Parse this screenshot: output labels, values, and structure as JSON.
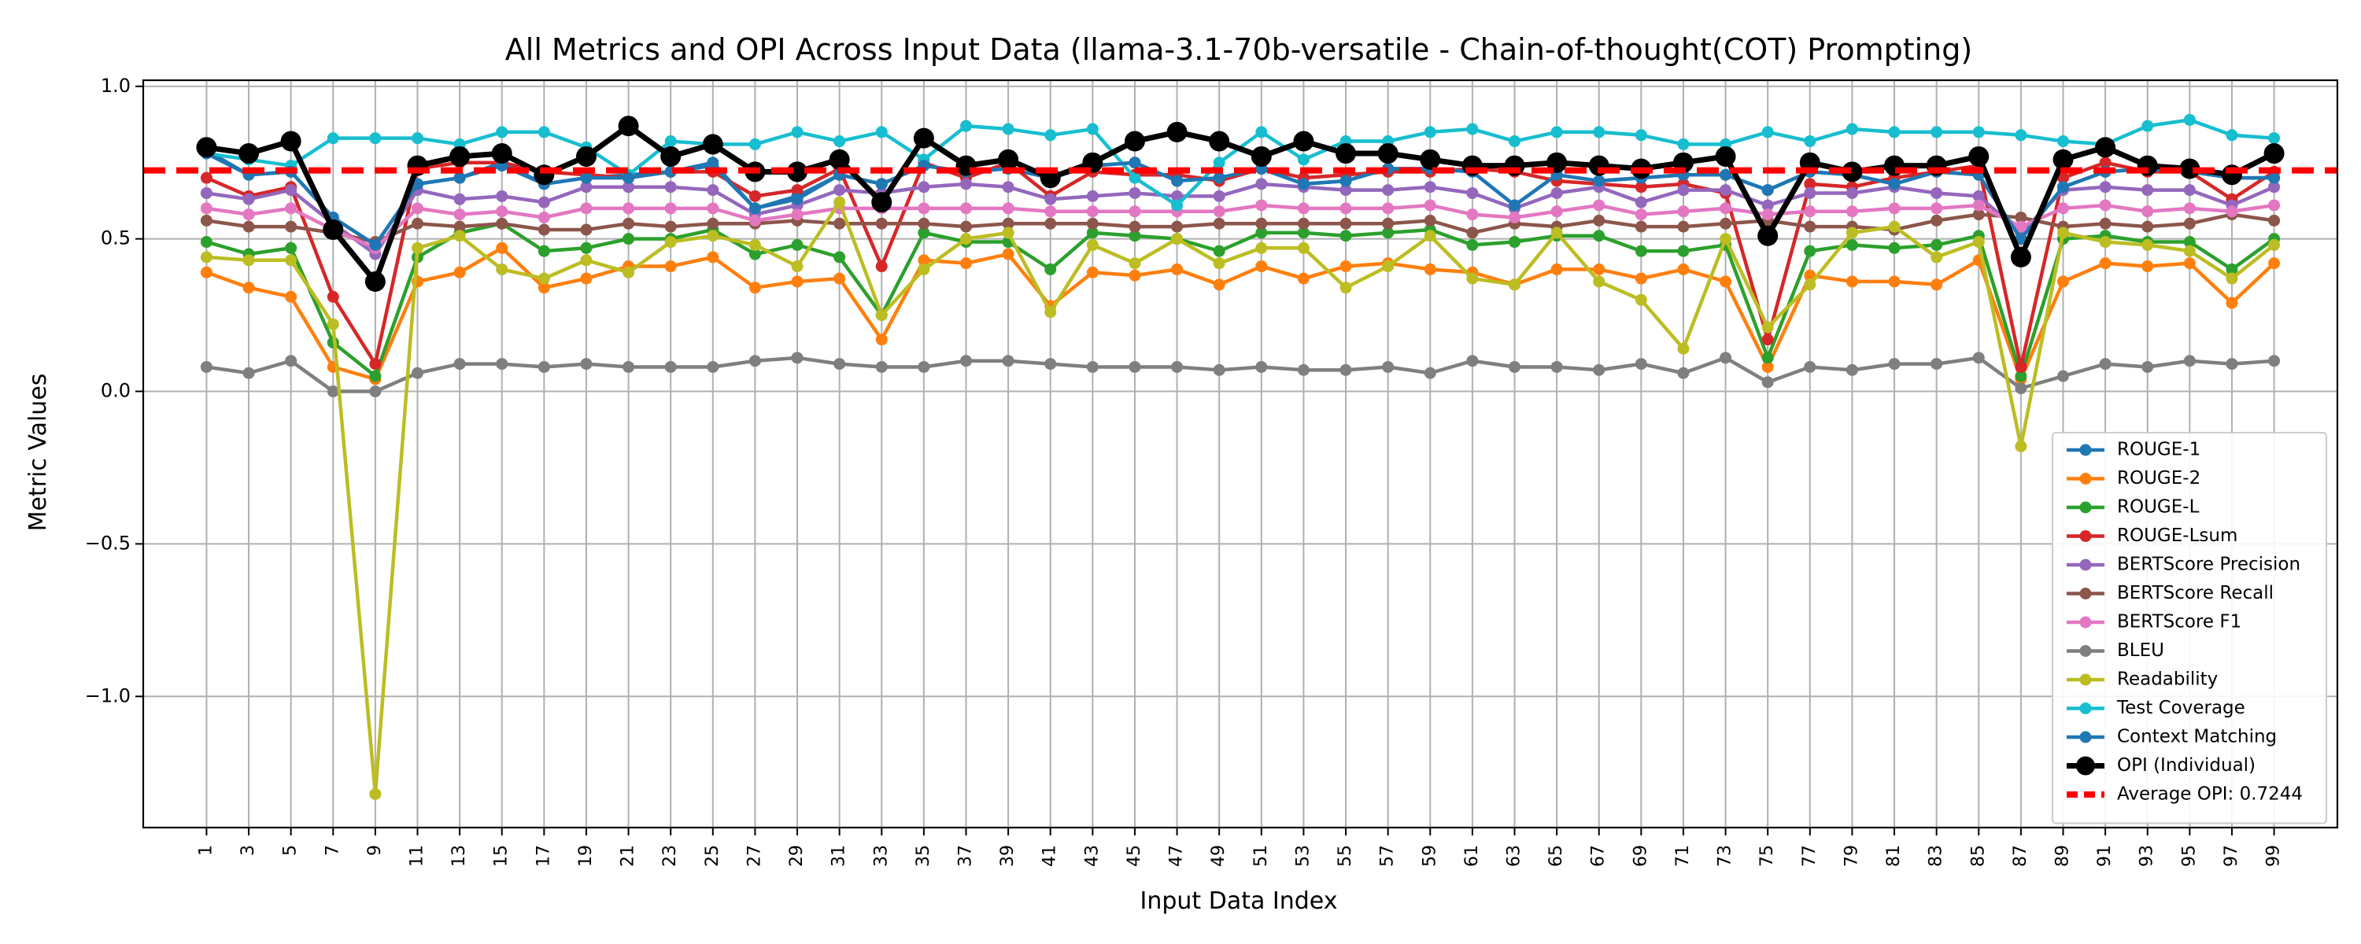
{
  "chart_data": {
    "type": "line",
    "title": "All Metrics and OPI Across Input Data (llama-3.1-70b-versatile - Chain-of-thought(COT) Prompting)",
    "xlabel": "Input Data Index",
    "ylabel": "Metric Values",
    "xlim": [
      -2,
      102
    ],
    "ylim": [
      -1.43,
      1.02
    ],
    "yticks": [
      1.0,
      0.5,
      0.0,
      -0.5,
      -1.0
    ],
    "ytick_labels": [
      "1.0",
      "0.5",
      "0.0",
      "−0.5",
      "−1.0"
    ],
    "x": [
      1,
      3,
      5,
      7,
      9,
      11,
      13,
      15,
      17,
      19,
      21,
      23,
      25,
      27,
      29,
      31,
      33,
      35,
      37,
      39,
      41,
      43,
      45,
      47,
      49,
      51,
      53,
      55,
      57,
      59,
      61,
      63,
      65,
      67,
      69,
      71,
      73,
      75,
      77,
      79,
      81,
      83,
      85,
      87,
      89,
      91,
      93,
      95,
      97,
      99
    ],
    "grid": true,
    "legend_position": "lower-right",
    "average_opi": 0.7244,
    "series": [
      {
        "name": "ROUGE-1",
        "color": "#1f77b4",
        "values": [
          0.79,
          0.71,
          0.72,
          0.57,
          0.48,
          0.68,
          0.7,
          0.75,
          0.68,
          0.7,
          0.71,
          0.72,
          0.75,
          0.6,
          0.64,
          0.71,
          0.68,
          0.74,
          0.72,
          0.73,
          0.7,
          0.74,
          0.75,
          0.69,
          0.7,
          0.73,
          0.68,
          0.69,
          0.73,
          0.73,
          0.72,
          0.61,
          0.71,
          0.69,
          0.7,
          0.71,
          0.71,
          0.66,
          0.72,
          0.71,
          0.68,
          0.72,
          0.71,
          0.5,
          0.67,
          0.72,
          0.73,
          0.72,
          0.7,
          0.7
        ]
      },
      {
        "name": "ROUGE-2",
        "color": "#ff7f0e",
        "values": [
          0.39,
          0.34,
          0.31,
          0.08,
          0.04,
          0.36,
          0.39,
          0.47,
          0.34,
          0.37,
          0.41,
          0.41,
          0.44,
          0.34,
          0.36,
          0.37,
          0.17,
          0.43,
          0.42,
          0.45,
          0.28,
          0.39,
          0.38,
          0.4,
          0.35,
          0.41,
          0.37,
          0.41,
          0.42,
          0.4,
          0.39,
          0.35,
          0.4,
          0.4,
          0.37,
          0.4,
          0.36,
          0.08,
          0.38,
          0.36,
          0.36,
          0.35,
          0.43,
          0.04,
          0.36,
          0.42,
          0.41,
          0.42,
          0.29,
          0.42
        ]
      },
      {
        "name": "ROUGE-L",
        "color": "#2ca02c",
        "values": [
          0.49,
          0.45,
          0.47,
          0.16,
          0.05,
          0.44,
          0.52,
          0.55,
          0.46,
          0.47,
          0.5,
          0.5,
          0.53,
          0.45,
          0.48,
          0.44,
          0.25,
          0.52,
          0.49,
          0.49,
          0.4,
          0.52,
          0.51,
          0.5,
          0.46,
          0.52,
          0.52,
          0.51,
          0.52,
          0.53,
          0.48,
          0.49,
          0.51,
          0.51,
          0.46,
          0.46,
          0.48,
          0.11,
          0.46,
          0.48,
          0.47,
          0.48,
          0.51,
          0.05,
          0.5,
          0.51,
          0.49,
          0.49,
          0.4,
          0.5
        ]
      },
      {
        "name": "ROUGE-Lsum",
        "color": "#d62728",
        "values": [
          0.7,
          0.64,
          0.67,
          0.31,
          0.09,
          0.73,
          0.75,
          0.75,
          0.72,
          0.71,
          0.7,
          0.72,
          0.72,
          0.64,
          0.66,
          0.73,
          0.41,
          0.75,
          0.7,
          0.75,
          0.64,
          0.72,
          0.71,
          0.71,
          0.69,
          0.73,
          0.7,
          0.71,
          0.72,
          0.72,
          0.73,
          0.72,
          0.69,
          0.68,
          0.67,
          0.68,
          0.65,
          0.17,
          0.68,
          0.67,
          0.7,
          0.72,
          0.74,
          0.08,
          0.7,
          0.75,
          0.72,
          0.72,
          0.63,
          0.72
        ]
      },
      {
        "name": "BERTScore Precision",
        "color": "#9467bd",
        "values": [
          0.65,
          0.63,
          0.66,
          0.55,
          0.45,
          0.66,
          0.63,
          0.64,
          0.62,
          0.67,
          0.67,
          0.67,
          0.66,
          0.58,
          0.61,
          0.66,
          0.65,
          0.67,
          0.68,
          0.67,
          0.63,
          0.64,
          0.65,
          0.64,
          0.64,
          0.68,
          0.67,
          0.66,
          0.66,
          0.67,
          0.65,
          0.6,
          0.65,
          0.67,
          0.62,
          0.66,
          0.66,
          0.61,
          0.65,
          0.65,
          0.67,
          0.65,
          0.64,
          0.52,
          0.66,
          0.67,
          0.66,
          0.66,
          0.61,
          0.67
        ]
      },
      {
        "name": "BERTScore Recall",
        "color": "#8c564b",
        "values": [
          0.56,
          0.54,
          0.54,
          0.52,
          0.49,
          0.55,
          0.54,
          0.55,
          0.53,
          0.53,
          0.55,
          0.54,
          0.55,
          0.55,
          0.56,
          0.55,
          0.55,
          0.55,
          0.54,
          0.55,
          0.55,
          0.55,
          0.54,
          0.54,
          0.55,
          0.55,
          0.55,
          0.55,
          0.55,
          0.56,
          0.52,
          0.55,
          0.54,
          0.56,
          0.54,
          0.54,
          0.55,
          0.56,
          0.54,
          0.54,
          0.53,
          0.56,
          0.58,
          0.57,
          0.54,
          0.55,
          0.54,
          0.55,
          0.58,
          0.56
        ]
      },
      {
        "name": "BERTScore F1",
        "color": "#e377c2",
        "values": [
          0.6,
          0.58,
          0.6,
          0.53,
          0.47,
          0.6,
          0.58,
          0.59,
          0.57,
          0.6,
          0.6,
          0.6,
          0.6,
          0.56,
          0.58,
          0.6,
          0.6,
          0.6,
          0.6,
          0.6,
          0.59,
          0.59,
          0.59,
          0.59,
          0.59,
          0.61,
          0.6,
          0.6,
          0.6,
          0.61,
          0.58,
          0.57,
          0.59,
          0.61,
          0.58,
          0.59,
          0.6,
          0.58,
          0.59,
          0.59,
          0.6,
          0.6,
          0.61,
          0.54,
          0.6,
          0.61,
          0.59,
          0.6,
          0.59,
          0.61
        ]
      },
      {
        "name": "BLEU",
        "color": "#7f7f7f",
        "values": [
          0.08,
          0.06,
          0.1,
          0.0,
          0.0,
          0.06,
          0.09,
          0.09,
          0.08,
          0.09,
          0.08,
          0.08,
          0.08,
          0.1,
          0.11,
          0.09,
          0.08,
          0.08,
          0.1,
          0.1,
          0.09,
          0.08,
          0.08,
          0.08,
          0.07,
          0.08,
          0.07,
          0.07,
          0.08,
          0.06,
          0.1,
          0.08,
          0.08,
          0.07,
          0.09,
          0.06,
          0.11,
          0.03,
          0.08,
          0.07,
          0.09,
          0.09,
          0.11,
          0.01,
          0.05,
          0.09,
          0.08,
          0.1,
          0.09,
          0.1
        ]
      },
      {
        "name": "Readability",
        "color": "#bcbd22",
        "values": [
          0.44,
          0.43,
          0.43,
          0.22,
          -1.32,
          0.47,
          0.51,
          0.4,
          0.37,
          0.43,
          0.39,
          0.49,
          0.51,
          0.48,
          0.41,
          0.62,
          0.25,
          0.4,
          0.5,
          0.52,
          0.26,
          0.48,
          0.42,
          0.5,
          0.42,
          0.47,
          0.47,
          0.34,
          0.41,
          0.51,
          0.37,
          0.35,
          0.52,
          0.36,
          0.3,
          0.14,
          0.5,
          0.21,
          0.35,
          0.52,
          0.54,
          0.44,
          0.49,
          -0.18,
          0.52,
          0.49,
          0.48,
          0.46,
          0.37,
          0.48
        ]
      },
      {
        "name": "Test Coverage",
        "color": "#17becf",
        "values": [
          0.78,
          0.76,
          0.74,
          0.83,
          0.83,
          0.83,
          0.81,
          0.85,
          0.85,
          0.8,
          0.71,
          0.82,
          0.81,
          0.81,
          0.85,
          0.82,
          0.85,
          0.76,
          0.87,
          0.86,
          0.84,
          0.86,
          0.7,
          0.61,
          0.75,
          0.85,
          0.76,
          0.82,
          0.82,
          0.85,
          0.86,
          0.82,
          0.85,
          0.85,
          0.84,
          0.81,
          0.81,
          0.85,
          0.82,
          0.86,
          0.85,
          0.85,
          0.85,
          0.84,
          0.82,
          0.81,
          0.87,
          0.89,
          0.84,
          0.83
        ]
      },
      {
        "name": "Context Matching",
        "color": "#1f77b4",
        "values": [
          0.78,
          0.71,
          0.72,
          0.57,
          0.48,
          0.68,
          0.7,
          0.74,
          0.68,
          0.7,
          0.7,
          0.72,
          0.74,
          0.6,
          0.63,
          0.71,
          0.68,
          0.74,
          0.72,
          0.73,
          0.7,
          0.74,
          0.75,
          0.69,
          0.7,
          0.73,
          0.68,
          0.69,
          0.73,
          0.73,
          0.72,
          0.61,
          0.71,
          0.69,
          0.7,
          0.71,
          0.71,
          0.66,
          0.72,
          0.71,
          0.68,
          0.72,
          0.71,
          0.5,
          0.67,
          0.72,
          0.73,
          0.72,
          0.7,
          0.7
        ]
      },
      {
        "name": "OPI (Individual)",
        "color": "#000000",
        "values": [
          0.8,
          0.78,
          0.82,
          0.53,
          0.36,
          0.74,
          0.77,
          0.78,
          0.71,
          0.77,
          0.87,
          0.77,
          0.81,
          0.72,
          0.72,
          0.76,
          0.62,
          0.83,
          0.74,
          0.76,
          0.7,
          0.75,
          0.82,
          0.85,
          0.82,
          0.77,
          0.82,
          0.78,
          0.78,
          0.76,
          0.74,
          0.74,
          0.75,
          0.74,
          0.73,
          0.75,
          0.77,
          0.51,
          0.75,
          0.72,
          0.74,
          0.74,
          0.77,
          0.44,
          0.76,
          0.8,
          0.74,
          0.73,
          0.71,
          0.78
        ]
      }
    ],
    "legend": [
      "ROUGE-1",
      "ROUGE-2",
      "ROUGE-L",
      "ROUGE-Lsum",
      "BERTScore Precision",
      "BERTScore Recall",
      "BERTScore F1",
      "BLEU",
      "Readability",
      "Test Coverage",
      "Context Matching",
      "OPI (Individual)",
      "Average OPI: 0.7244"
    ],
    "average_color": "#ff0000"
  }
}
